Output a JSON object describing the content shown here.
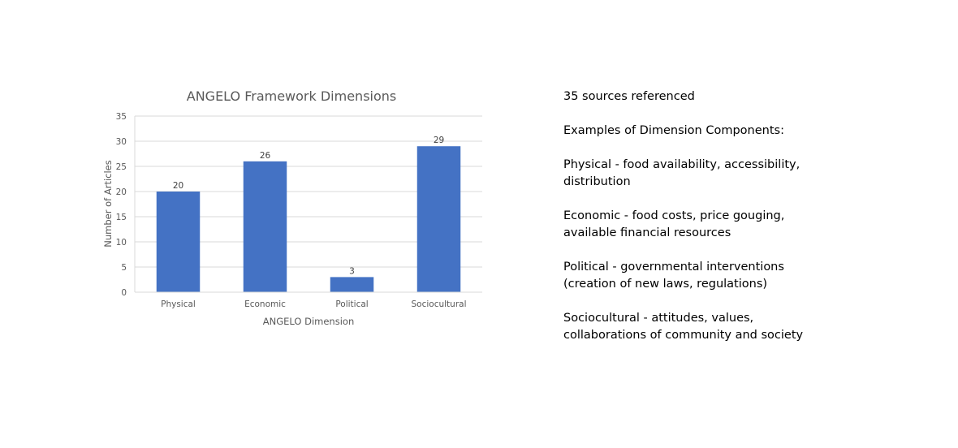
{
  "chart_data": {
    "type": "bar",
    "title": "ANGELO Framework Dimensions",
    "xlabel": "ANGELO Dimension",
    "ylabel": "Number of Articles",
    "categories": [
      "Physical",
      "Economic",
      "Political",
      "Sociocultural"
    ],
    "values": [
      20,
      26,
      3,
      29
    ],
    "ylim": [
      0,
      35
    ],
    "yticks": [
      0,
      5,
      10,
      15,
      20,
      25,
      30,
      35
    ],
    "grid": true,
    "legend": "none",
    "bar_color": "#4472c4"
  },
  "notes": {
    "sources": "35 sources referenced",
    "examples_heading": "Examples of Dimension Components:",
    "items": [
      {
        "line1": "Physical - food availability, accessibility,",
        "line2": "distribution"
      },
      {
        "line1": "Economic - food costs, price gouging,",
        "line2": "available financial resources"
      },
      {
        "line1": "Political - governmental interventions",
        "line2": "(creation of new laws, regulations)"
      },
      {
        "line1": "Sociocultural - attitudes, values,",
        "line2": "collaborations of community and society"
      }
    ]
  }
}
